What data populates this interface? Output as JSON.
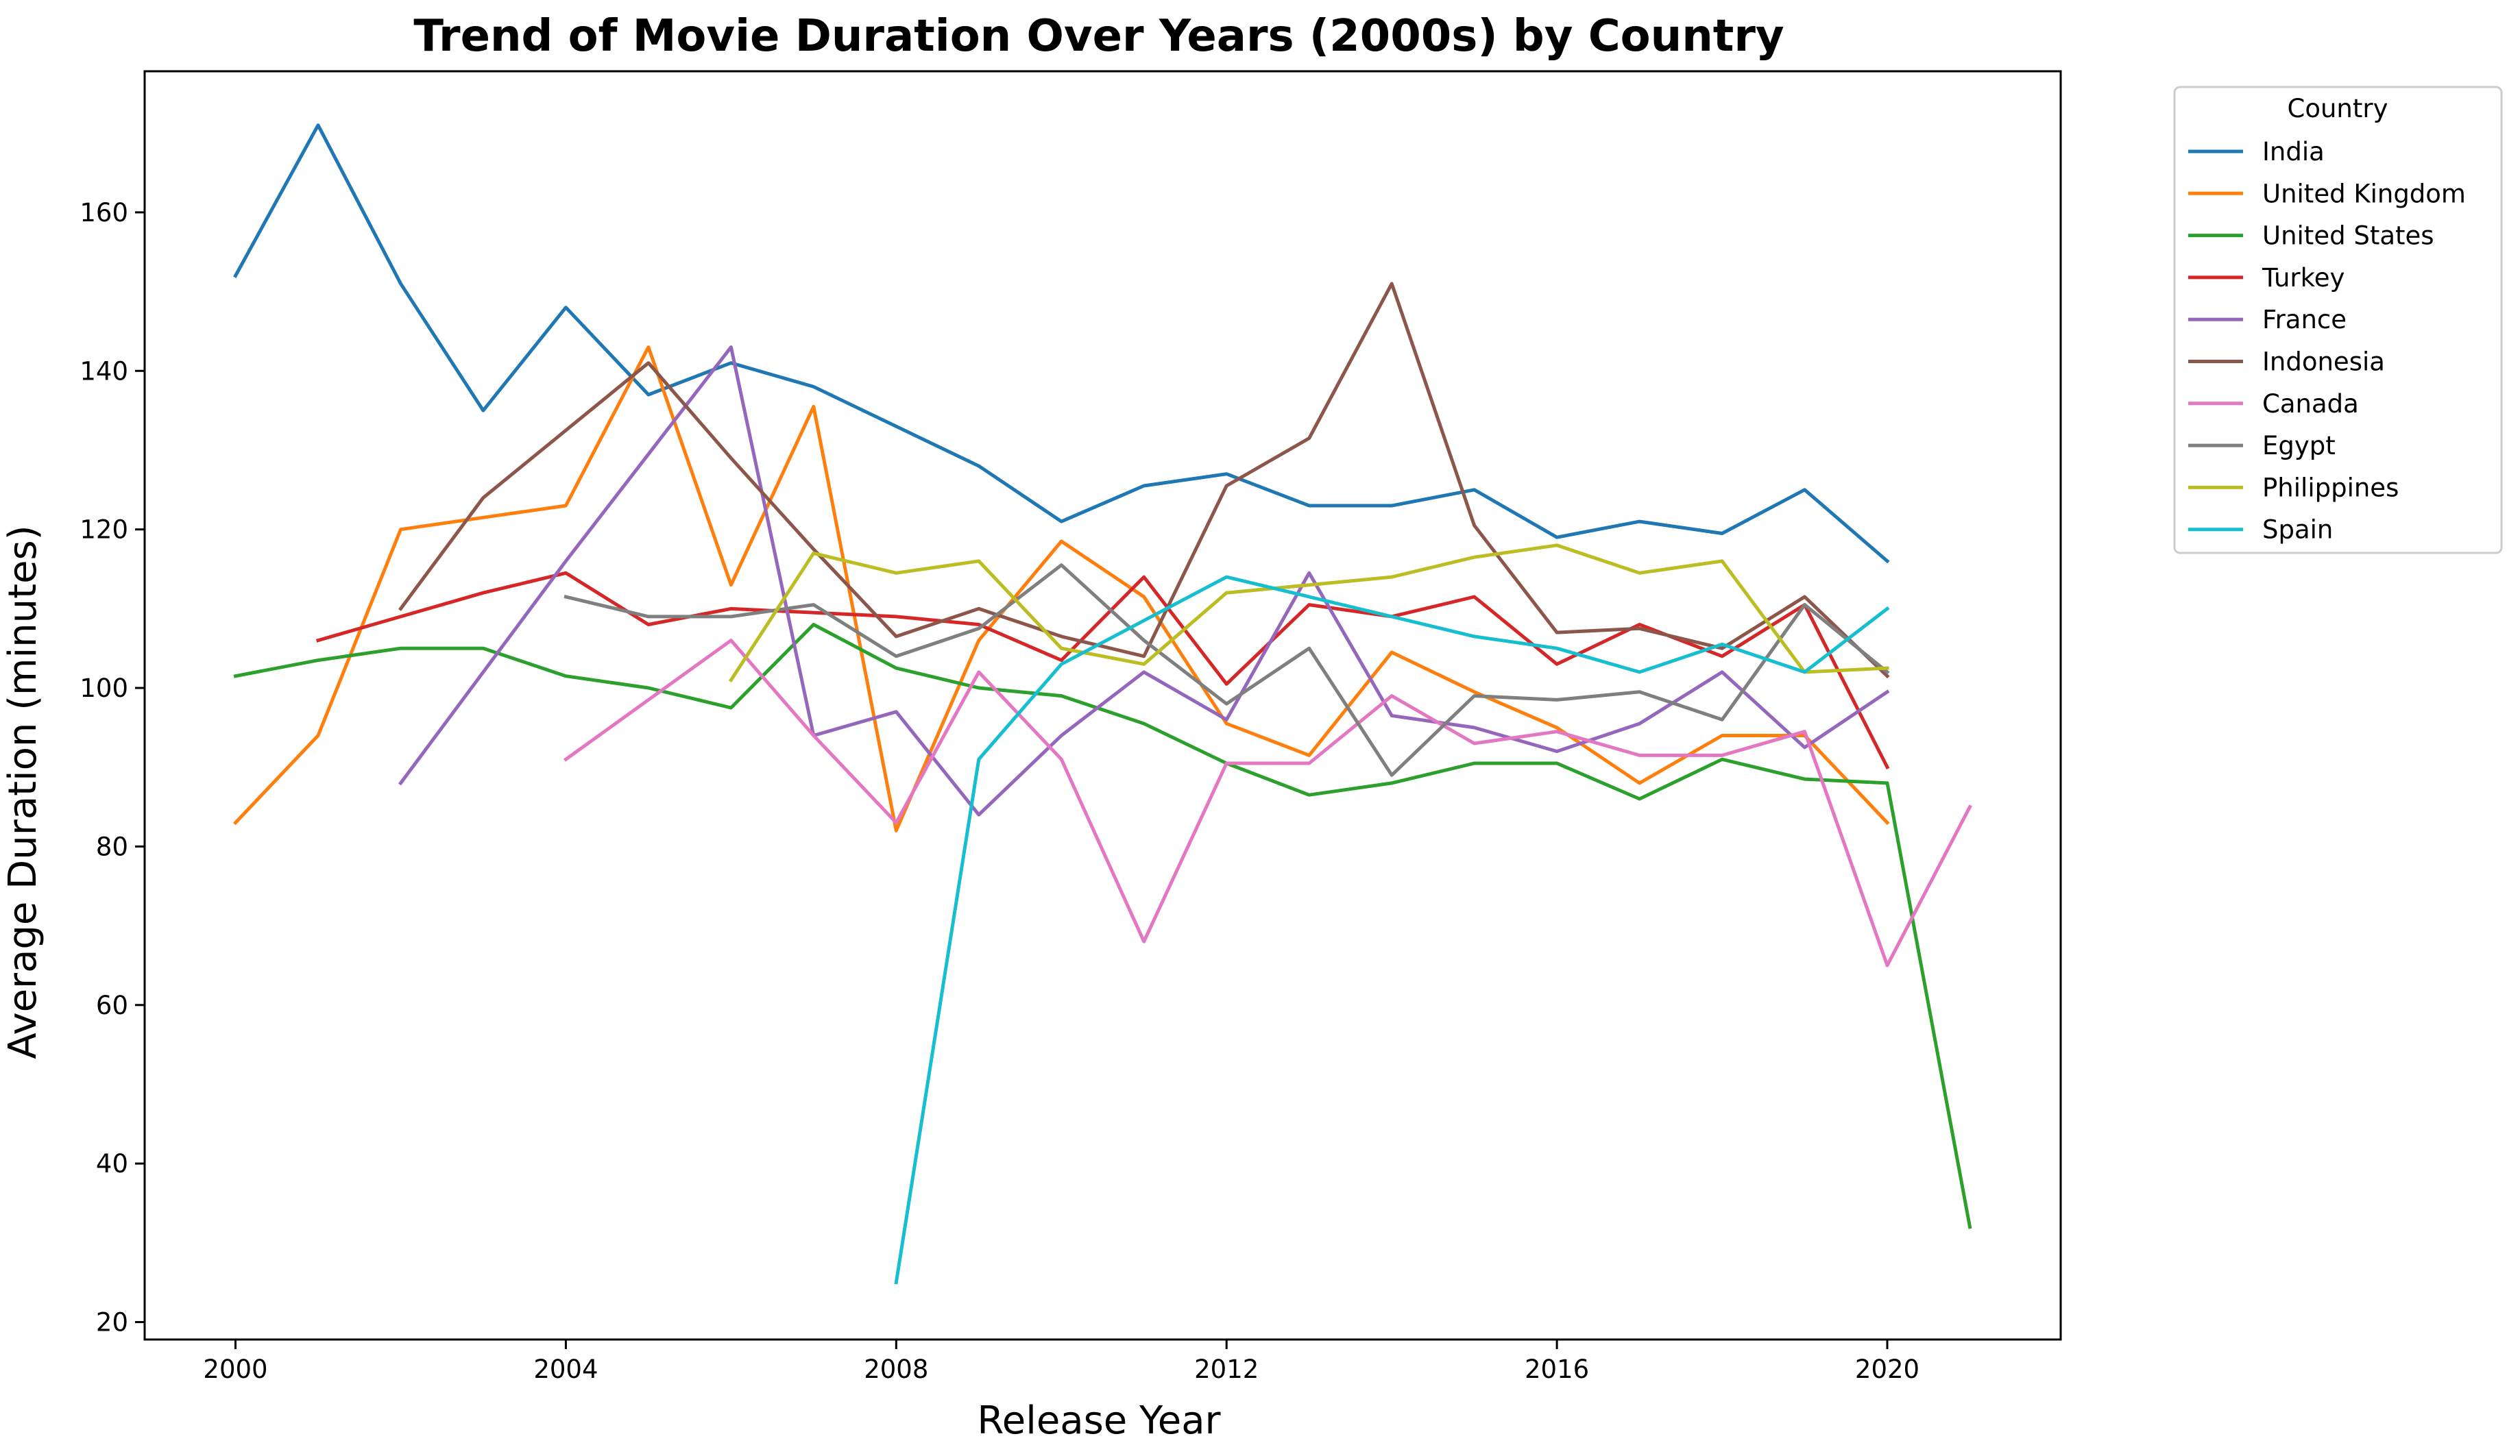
{
  "chart_data": {
    "type": "line",
    "title": "Trend of Movie Duration Over Years (2000s) by Country",
    "xlabel": "Release Year",
    "ylabel": "Average Duration (minutes)",
    "xlim": [
      1998.9,
      2022.1
    ],
    "ylim": [
      17.8,
      177.8
    ],
    "x_ticks": [
      2000,
      2004,
      2008,
      2012,
      2016,
      2020
    ],
    "y_ticks": [
      20,
      40,
      60,
      80,
      100,
      120,
      140,
      160
    ],
    "grid": false,
    "legend": {
      "title": "Country",
      "placement": "outside-top-right"
    },
    "series": [
      {
        "name": "India",
        "color": "#1f77b4",
        "points": [
          [
            2000,
            152
          ],
          [
            2001,
            171
          ],
          [
            2002,
            151
          ],
          [
            2003,
            135
          ],
          [
            2004,
            148
          ],
          [
            2005,
            137
          ],
          [
            2006,
            141
          ],
          [
            2007,
            138
          ],
          [
            2008,
            133
          ],
          [
            2009,
            128
          ],
          [
            2010,
            121
          ],
          [
            2011,
            125.5
          ],
          [
            2012,
            127
          ],
          [
            2013,
            123
          ],
          [
            2014,
            123
          ],
          [
            2015,
            125
          ],
          [
            2016,
            119
          ],
          [
            2017,
            121
          ],
          [
            2018,
            119.5
          ],
          [
            2019,
            125
          ],
          [
            2020,
            116
          ]
        ]
      },
      {
        "name": "United Kingdom",
        "color": "#ff7f0e",
        "points": [
          [
            2000,
            83
          ],
          [
            2001,
            94
          ],
          [
            2002,
            120
          ],
          [
            2003,
            121.5
          ],
          [
            2004,
            123
          ],
          [
            2005,
            143
          ],
          [
            2006,
            113
          ],
          [
            2007,
            135.5
          ],
          [
            2008,
            82
          ],
          [
            2009,
            106
          ],
          [
            2010,
            118.5
          ],
          [
            2011,
            111.5
          ],
          [
            2012,
            95.5
          ],
          [
            2013,
            91.5
          ],
          [
            2014,
            104.5
          ],
          [
            2015,
            99.5
          ],
          [
            2016,
            95
          ],
          [
            2017,
            88
          ],
          [
            2018,
            94
          ],
          [
            2019,
            94
          ],
          [
            2020,
            83
          ]
        ]
      },
      {
        "name": "United States",
        "color": "#2ca02c",
        "points": [
          [
            2000,
            101.5
          ],
          [
            2001,
            103.5
          ],
          [
            2002,
            105
          ],
          [
            2003,
            105
          ],
          [
            2004,
            101.5
          ],
          [
            2005,
            100
          ],
          [
            2006,
            97.5
          ],
          [
            2007,
            108
          ],
          [
            2008,
            102.5
          ],
          [
            2009,
            100
          ],
          [
            2010,
            99
          ],
          [
            2011,
            95.5
          ],
          [
            2012,
            90.5
          ],
          [
            2013,
            86.5
          ],
          [
            2014,
            88
          ],
          [
            2015,
            90.5
          ],
          [
            2016,
            90.5
          ],
          [
            2017,
            86
          ],
          [
            2018,
            91
          ],
          [
            2019,
            88.5
          ],
          [
            2020,
            88
          ],
          [
            2021,
            32
          ]
        ]
      },
      {
        "name": "Turkey",
        "color": "#d62728",
        "points": [
          [
            2001,
            106
          ],
          [
            2002,
            109
          ],
          [
            2003,
            112
          ],
          [
            2004,
            114.5
          ],
          [
            2005,
            108
          ],
          [
            2006,
            110
          ],
          [
            2007,
            109.5
          ],
          [
            2008,
            109
          ],
          [
            2009,
            108
          ],
          [
            2010,
            103.5
          ],
          [
            2011,
            114
          ],
          [
            2012,
            100.5
          ],
          [
            2013,
            110.5
          ],
          [
            2014,
            109
          ],
          [
            2015,
            111.5
          ],
          [
            2016,
            103
          ],
          [
            2017,
            108
          ],
          [
            2018,
            104
          ],
          [
            2019,
            110.5
          ],
          [
            2020,
            90
          ]
        ]
      },
      {
        "name": "France",
        "color": "#9467bd",
        "points": [
          [
            2002,
            88
          ],
          [
            2003,
            102
          ],
          [
            2004,
            116
          ],
          [
            2005,
            129.5
          ],
          [
            2006,
            143
          ],
          [
            2007,
            94
          ],
          [
            2008,
            97
          ],
          [
            2009,
            84
          ],
          [
            2010,
            94
          ],
          [
            2011,
            102
          ],
          [
            2012,
            96
          ],
          [
            2013,
            114.5
          ],
          [
            2014,
            96.5
          ],
          [
            2015,
            95
          ],
          [
            2016,
            92
          ],
          [
            2017,
            95.5
          ],
          [
            2018,
            102
          ],
          [
            2019,
            92.5
          ],
          [
            2020,
            99.5
          ]
        ]
      },
      {
        "name": "Indonesia",
        "color": "#8c564b",
        "points": [
          [
            2002,
            110
          ],
          [
            2003,
            124
          ],
          [
            2004,
            132.5
          ],
          [
            2005,
            141
          ],
          [
            2006,
            129
          ],
          [
            2007,
            117.5
          ],
          [
            2008,
            106.5
          ],
          [
            2009,
            110
          ],
          [
            2010,
            106.5
          ],
          [
            2011,
            104
          ],
          [
            2012,
            125.5
          ],
          [
            2013,
            131.5
          ],
          [
            2014,
            151
          ],
          [
            2015,
            120.5
          ],
          [
            2016,
            107
          ],
          [
            2017,
            107.5
          ],
          [
            2018,
            105
          ],
          [
            2019,
            111.5
          ],
          [
            2020,
            101.5
          ]
        ]
      },
      {
        "name": "Canada",
        "color": "#e377c2",
        "points": [
          [
            2004,
            91
          ],
          [
            2005,
            98.5
          ],
          [
            2006,
            106
          ],
          [
            2007,
            94
          ],
          [
            2008,
            83
          ],
          [
            2009,
            102
          ],
          [
            2010,
            91
          ],
          [
            2011,
            68
          ],
          [
            2012,
            90.5
          ],
          [
            2013,
            90.5
          ],
          [
            2014,
            99
          ],
          [
            2015,
            93
          ],
          [
            2016,
            94.5
          ],
          [
            2017,
            91.5
          ],
          [
            2018,
            91.5
          ],
          [
            2019,
            94.5
          ],
          [
            2020,
            65
          ],
          [
            2021,
            85
          ]
        ]
      },
      {
        "name": "Egypt",
        "color": "#7f7f7f",
        "points": [
          [
            2004,
            111.5
          ],
          [
            2005,
            109
          ],
          [
            2006,
            109
          ],
          [
            2007,
            110.5
          ],
          [
            2008,
            104
          ],
          [
            2009,
            107.5
          ],
          [
            2010,
            115.5
          ],
          [
            2011,
            106
          ],
          [
            2012,
            98
          ],
          [
            2013,
            105
          ],
          [
            2014,
            89
          ],
          [
            2015,
            99
          ],
          [
            2016,
            98.5
          ],
          [
            2017,
            99.5
          ],
          [
            2018,
            96
          ],
          [
            2019,
            110.5
          ],
          [
            2020,
            102
          ]
        ]
      },
      {
        "name": "Philippines",
        "color": "#bcbd22",
        "points": [
          [
            2006,
            101
          ],
          [
            2007,
            117
          ],
          [
            2008,
            114.5
          ],
          [
            2009,
            116
          ],
          [
            2010,
            105
          ],
          [
            2011,
            103
          ],
          [
            2012,
            112
          ],
          [
            2013,
            113
          ],
          [
            2014,
            114
          ],
          [
            2015,
            116.5
          ],
          [
            2016,
            118
          ],
          [
            2017,
            114.5
          ],
          [
            2018,
            116
          ],
          [
            2019,
            102
          ],
          [
            2020,
            102.5
          ]
        ]
      },
      {
        "name": "Spain",
        "color": "#17becf",
        "points": [
          [
            2008,
            25
          ],
          [
            2009,
            91
          ],
          [
            2010,
            103
          ],
          [
            2011,
            108.5
          ],
          [
            2012,
            114
          ],
          [
            2013,
            111.5
          ],
          [
            2014,
            109
          ],
          [
            2015,
            106.5
          ],
          [
            2016,
            105
          ],
          [
            2017,
            102
          ],
          [
            2018,
            105.5
          ],
          [
            2019,
            102
          ],
          [
            2020,
            110
          ]
        ]
      }
    ]
  }
}
